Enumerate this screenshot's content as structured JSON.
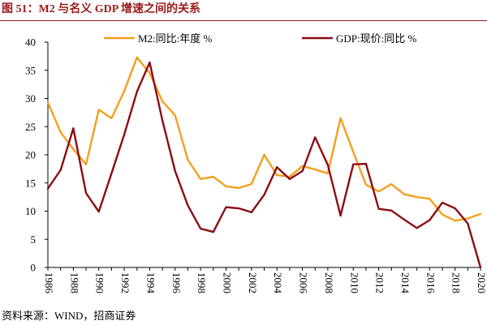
{
  "title": "图 51：M2 与名义 GDP 增速之间的关系",
  "source": "资料来源：WIND，招商证券",
  "colors": {
    "title": "#9B1B1B",
    "rule": "#9B1B1B",
    "axis": "#000000"
  },
  "chart_data": {
    "type": "line",
    "title": "",
    "xlabel": "",
    "ylabel": "",
    "x": [
      1986,
      1987,
      1988,
      1989,
      1990,
      1991,
      1992,
      1993,
      1994,
      1995,
      1996,
      1997,
      1998,
      1999,
      2000,
      2001,
      2002,
      2003,
      2004,
      2005,
      2006,
      2007,
      2008,
      2009,
      2010,
      2011,
      2012,
      2013,
      2014,
      2015,
      2016,
      2017,
      2018,
      2019,
      2020
    ],
    "xlim": [
      1986,
      2020
    ],
    "xticks": [
      "1986",
      "1988",
      "1990",
      "1992",
      "1994",
      "1996",
      "1998",
      "2000",
      "2002",
      "2004",
      "2006",
      "2008",
      "2010",
      "2012",
      "2014",
      "2016",
      "2018",
      "2020"
    ],
    "ylim": [
      0,
      40
    ],
    "yticks": [
      0,
      5,
      10,
      15,
      20,
      25,
      30,
      35,
      40
    ],
    "grid": false,
    "legend": "top",
    "series": [
      {
        "name": "M2:同比:年度 %",
        "color": "#F2A01E",
        "values": [
          29.3,
          24.0,
          21.0,
          18.3,
          28.0,
          26.5,
          31.3,
          37.3,
          34.5,
          29.5,
          27.0,
          19.1,
          15.7,
          16.1,
          14.4,
          14.1,
          14.8,
          20.0,
          16.4,
          16.1,
          18.0,
          17.4,
          16.7,
          26.5,
          20.5,
          14.7,
          13.5,
          14.8,
          13.0,
          12.5,
          12.2,
          9.4,
          8.3,
          8.7,
          9.5
        ]
      },
      {
        "name": "GDP:现价:同比 %",
        "color": "#8B0D14",
        "values": [
          14.0,
          17.3,
          24.7,
          13.2,
          9.9,
          16.7,
          23.6,
          31.2,
          36.4,
          26.1,
          17.1,
          11.0,
          6.9,
          6.3,
          10.7,
          10.5,
          9.8,
          12.9,
          17.8,
          15.7,
          17.1,
          23.1,
          18.2,
          9.2,
          18.3,
          18.4,
          10.4,
          10.1,
          8.5,
          7.0,
          8.4,
          11.5,
          10.5,
          7.8,
          0.0
        ]
      }
    ]
  }
}
